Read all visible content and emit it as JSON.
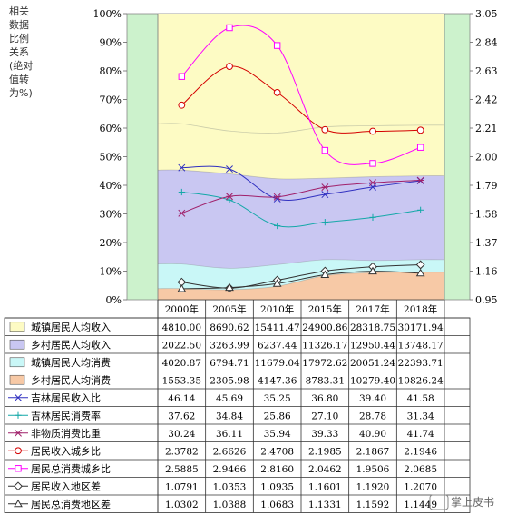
{
  "chart_data": {
    "type": "area+line",
    "categories": [
      "2000年",
      "2005年",
      "2010年",
      "2015年",
      "2017年",
      "2018年"
    ],
    "y_left_label": [
      "相关",
      "数据",
      "比例",
      "关系",
      "(绝对",
      "值转",
      "为%)"
    ],
    "y_left_ticks": [
      "100%",
      "90%",
      "80%",
      "70%",
      "60%",
      "50%",
      "40%",
      "30%",
      "20%",
      "10%",
      "0%"
    ],
    "y_right_ticks": [
      "3.05",
      "2.84",
      "2.63",
      "2.42",
      "2.21",
      "2.00",
      "1.79",
      "1.58",
      "1.37",
      "1.16",
      "0.95"
    ],
    "colors": {
      "plot_bg": "#ccf2cc",
      "urban_income": "#fdfbc4",
      "rural_income": "#c9c7f2",
      "urban_consume": "#c9f7f7",
      "rural_consume": "#f7c9a6",
      "magenta": "#ff00ff",
      "red": "#d40000",
      "blue": "#3030c0",
      "teal": "#14a8a8",
      "dark": "#333333"
    },
    "area_series": [
      {
        "name": "城镇居民人均收入",
        "values": [
          "4810.00",
          "8690.62",
          "15411.47",
          "24900.86",
          "28318.75",
          "30171.94"
        ],
        "pct": [
          61.5,
          59.0,
          58.3,
          60.4,
          60.8,
          61.0
        ]
      },
      {
        "name": "乡村居民人均收入",
        "values": [
          "2022.50",
          "3263.99",
          "6237.44",
          "11326.17",
          "12950.44",
          "13748.17"
        ],
        "pct": [
          45.3,
          44.0,
          42.3,
          42.5,
          43.0,
          43.3
        ]
      },
      {
        "name": "城镇居民人均消费",
        "values": [
          "4020.87",
          "6794.71",
          "11679.04",
          "17972.62",
          "20051.24",
          "22393.71"
        ],
        "pct": [
          12.5,
          11.0,
          12.3,
          14.0,
          13.7,
          14.0
        ]
      },
      {
        "name": "乡村居民人均消费",
        "values": [
          "1553.35",
          "2305.98",
          "4147.36",
          "8783.31",
          "10279.40",
          "10826.24"
        ],
        "pct": [
          3.9,
          3.5,
          4.7,
          8.4,
          9.5,
          9.6
        ]
      }
    ],
    "line_series": [
      {
        "name": "吉林居民收入比",
        "values": [
          "46.14",
          "45.69",
          "35.25",
          "36.80",
          "39.40",
          "41.58"
        ],
        "pct": [
          46.14,
          45.69,
          35.25,
          36.8,
          39.4,
          41.58
        ],
        "axis": "left",
        "marker": "x",
        "color": "#3030c0"
      },
      {
        "name": "吉林居民消费率",
        "values": [
          "37.62",
          "34.84",
          "25.86",
          "27.10",
          "28.78",
          "31.34"
        ],
        "pct": [
          37.62,
          34.84,
          25.86,
          27.1,
          28.78,
          31.34
        ],
        "axis": "left",
        "marker": "plus",
        "color": "#14a8a8"
      },
      {
        "name": "非物质消费比重",
        "values": [
          "30.24",
          "36.11",
          "35.94",
          "39.33",
          "40.90",
          "41.74"
        ],
        "pct": [
          30.24,
          36.11,
          35.94,
          39.33,
          40.9,
          41.74
        ],
        "axis": "left",
        "marker": "star",
        "color": "#a0206a"
      },
      {
        "name": "居民收入城乡比",
        "values": [
          "2.3782",
          "2.6626",
          "2.4708",
          "2.1985",
          "2.1867",
          "2.1946"
        ],
        "num": [
          2.3782,
          2.6626,
          2.4708,
          2.1985,
          2.1867,
          2.1946
        ],
        "axis": "right",
        "marker": "circle",
        "color": "#d40000"
      },
      {
        "name": "居民总消费城乡比",
        "values": [
          "2.5885",
          "2.9466",
          "2.8160",
          "2.0462",
          "1.9506",
          "2.0685"
        ],
        "num": [
          2.5885,
          2.9466,
          2.816,
          2.0462,
          1.9506,
          2.0685
        ],
        "axis": "right",
        "marker": "square",
        "color": "#ff00ff"
      },
      {
        "name": "居民收入地区差",
        "values": [
          "1.0791",
          "1.0353",
          "1.0935",
          "1.1601",
          "1.1920",
          "1.2070"
        ],
        "num": [
          1.0791,
          1.0353,
          1.0935,
          1.1601,
          1.192,
          1.207
        ],
        "axis": "right",
        "marker": "diamond",
        "color": "#333333"
      },
      {
        "name": "居民总消费地区差",
        "values": [
          "1.0302",
          "1.0388",
          "1.0683",
          "1.1331",
          "1.1592",
          "1.1449"
        ],
        "num": [
          1.0302,
          1.0388,
          1.0683,
          1.1331,
          1.1592,
          1.1449
        ],
        "axis": "right",
        "marker": "triangle",
        "color": "#333333"
      }
    ],
    "ylim_left": [
      0,
      100
    ],
    "ylim_right": [
      0.95,
      3.05
    ]
  },
  "watermark": "掌上皮书"
}
